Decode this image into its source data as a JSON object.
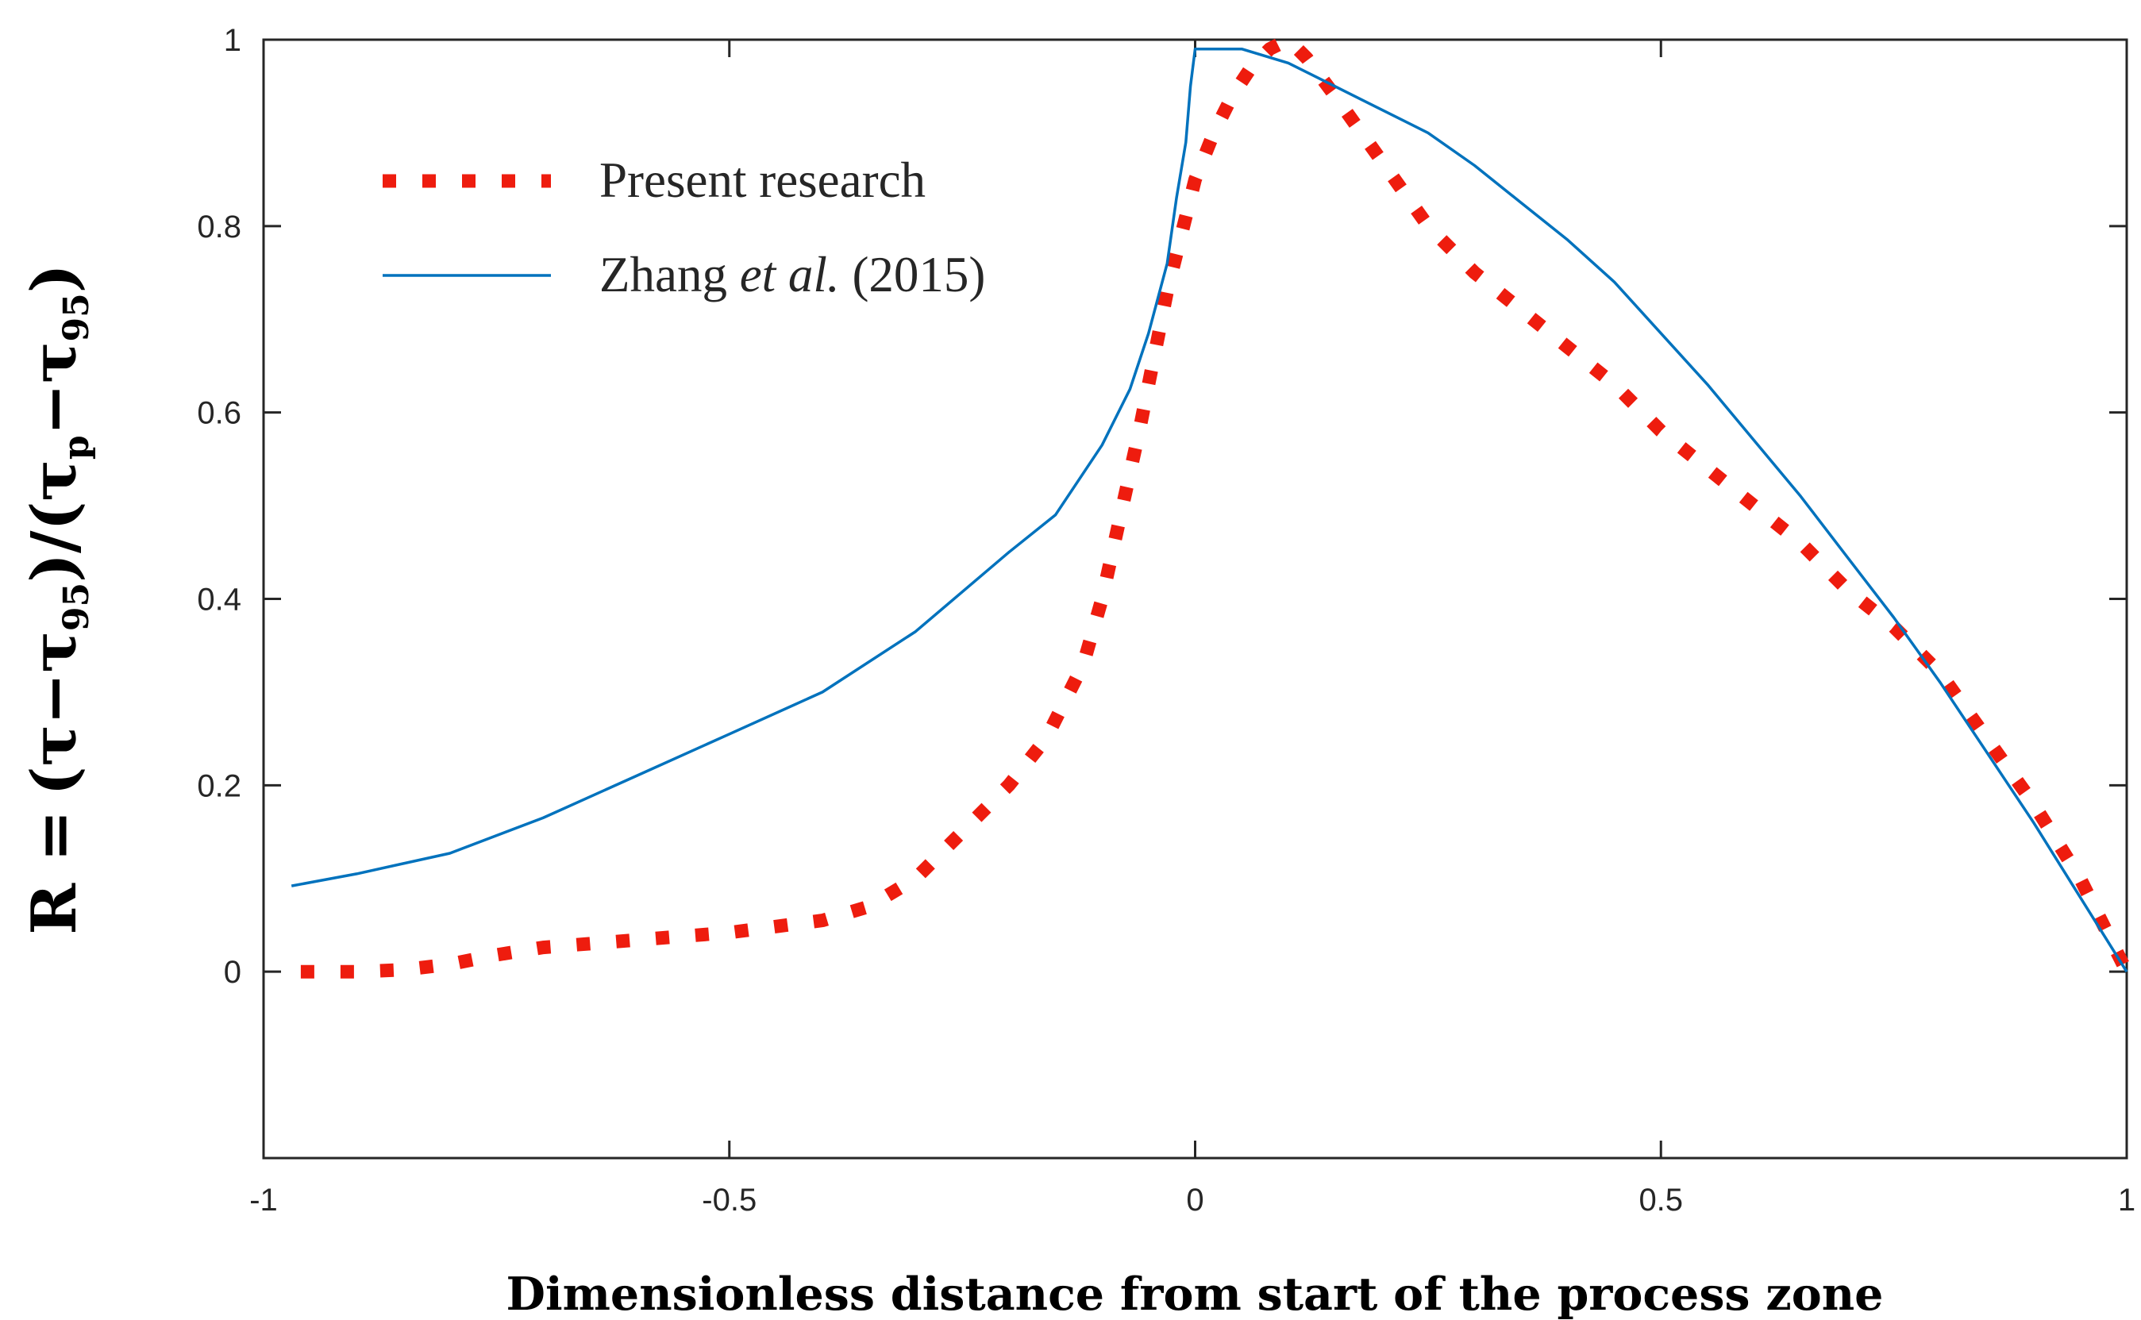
{
  "chart_data": {
    "type": "line",
    "title": "",
    "xlabel": "Dimensionless distance from start of the process zone",
    "ylabel": "R = (τ−τ95)/(τp−τ95)",
    "ylabel_parts": {
      "lhs": "R =",
      "tau": "τ",
      "minus": "−",
      "sub95": "95",
      "subp": "p",
      "lparen": "(",
      "rparen": ")",
      "slash": "/"
    },
    "xlim": [
      -1,
      1
    ],
    "ylim": [
      -0.2,
      1
    ],
    "xticks": [
      -1,
      -0.5,
      0,
      0.5,
      1
    ],
    "xtick_labels": [
      "-1",
      "-0.5",
      "0",
      "0.5",
      "1"
    ],
    "yticks": [
      0,
      0.2,
      0.4,
      0.6,
      0.8,
      1
    ],
    "ytick_labels": [
      "0",
      "0.2",
      "0.4",
      "0.6",
      "0.8",
      "1"
    ],
    "grid": false,
    "legend_position": "upper-left",
    "legend": {
      "present": "Present research",
      "zhang_prefix": "Zhang ",
      "zhang_italic": "et al.",
      "zhang_suffix": " (2015)"
    },
    "series": [
      {
        "name": "Present research",
        "style": "dotted",
        "color": "#ee1c0e",
        "x": [
          -0.96,
          -0.9,
          -0.85,
          -0.8,
          -0.75,
          -0.7,
          -0.6,
          -0.5,
          -0.4,
          -0.35,
          -0.3,
          -0.25,
          -0.2,
          -0.16,
          -0.12,
          -0.1,
          -0.08,
          -0.06,
          -0.05,
          -0.04,
          -0.03,
          -0.02,
          -0.01,
          0.0,
          0.02,
          0.04,
          0.06,
          0.08,
          0.1,
          0.12,
          0.15,
          0.2,
          0.25,
          0.3,
          0.35,
          0.4,
          0.45,
          0.5,
          0.55,
          0.6,
          0.65,
          0.7,
          0.75,
          0.8,
          0.85,
          0.9,
          0.95,
          1.0
        ],
        "y": [
          0.0,
          0.0,
          0.002,
          0.008,
          0.018,
          0.026,
          0.034,
          0.042,
          0.055,
          0.07,
          0.1,
          0.15,
          0.2,
          0.25,
          0.33,
          0.4,
          0.49,
          0.58,
          0.63,
          0.68,
          0.73,
          0.77,
          0.81,
          0.85,
          0.9,
          0.94,
          0.97,
          0.99,
          1.0,
          0.98,
          0.94,
          0.87,
          0.8,
          0.75,
          0.71,
          0.67,
          0.63,
          0.58,
          0.54,
          0.5,
          0.46,
          0.41,
          0.37,
          0.32,
          0.25,
          0.18,
          0.1,
          0.0
        ]
      },
      {
        "name": "Zhang et al. (2015)",
        "style": "solid",
        "color": "#0072bd",
        "x": [
          -0.97,
          -0.9,
          -0.8,
          -0.7,
          -0.6,
          -0.5,
          -0.4,
          -0.3,
          -0.2,
          -0.15,
          -0.1,
          -0.07,
          -0.05,
          -0.03,
          -0.02,
          -0.01,
          -0.005,
          0.0,
          0.02,
          0.05,
          0.1,
          0.15,
          0.2,
          0.25,
          0.3,
          0.35,
          0.4,
          0.45,
          0.5,
          0.55,
          0.6,
          0.65,
          0.7,
          0.75,
          0.8,
          0.85,
          0.9,
          0.95,
          1.0
        ],
        "y": [
          0.092,
          0.105,
          0.127,
          0.165,
          0.21,
          0.255,
          0.3,
          0.365,
          0.45,
          0.49,
          0.565,
          0.625,
          0.685,
          0.76,
          0.83,
          0.89,
          0.95,
          0.99,
          0.99,
          0.99,
          0.975,
          0.95,
          0.925,
          0.9,
          0.865,
          0.825,
          0.785,
          0.74,
          0.685,
          0.63,
          0.57,
          0.51,
          0.445,
          0.38,
          0.31,
          0.235,
          0.16,
          0.08,
          0.0
        ]
      }
    ]
  }
}
